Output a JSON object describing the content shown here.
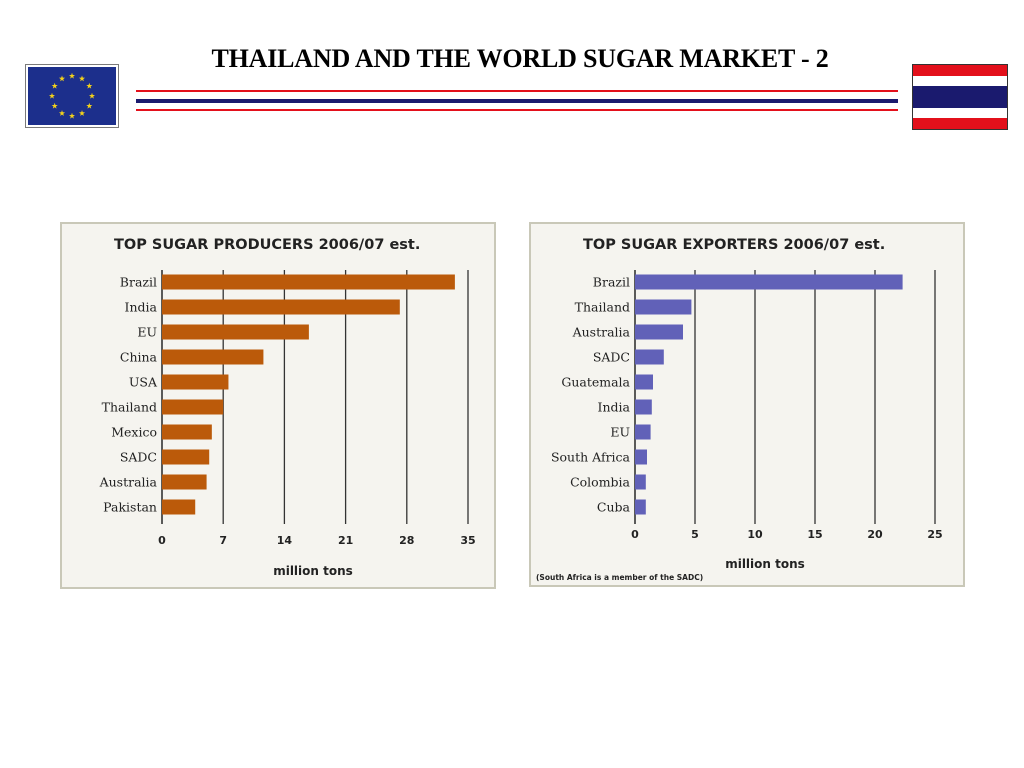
{
  "slide": {
    "title": "THAILAND AND THE WORLD SUGAR MARKET - 2",
    "colors": {
      "red": "#e3101b",
      "blue": "#1a1a6e",
      "eu_blue": "#1c2f8c",
      "eu_star": "#f2d11b"
    },
    "icons": {
      "left": "eu-flag-icon",
      "right": "thailand-flag-icon"
    }
  },
  "chart_data": [
    {
      "type": "bar",
      "orientation": "horizontal",
      "title": "TOP SUGAR PRODUCERS 2006/07 est.",
      "categories": [
        "Brazil",
        "India",
        "EU",
        "China",
        "USA",
        "Thailand",
        "Mexico",
        "SADC",
        "Australia",
        "Pakistan"
      ],
      "values": [
        33.5,
        27.2,
        16.8,
        11.6,
        7.6,
        7.0,
        5.7,
        5.4,
        5.1,
        3.8
      ],
      "xlabel": "million tons",
      "ylabel": "",
      "xlim": [
        0,
        35
      ],
      "xticks": [
        0,
        7,
        14,
        21,
        28,
        35
      ],
      "grid": true,
      "bar_color": "#bb5a0a",
      "footnote": ""
    },
    {
      "type": "bar",
      "orientation": "horizontal",
      "title": "TOP SUGAR EXPORTERS 2006/07 est.",
      "categories": [
        "Brazil",
        "Thailand",
        "Australia",
        "SADC",
        "Guatemala",
        "India",
        "EU",
        "South Africa",
        "Colombia",
        "Cuba"
      ],
      "values": [
        22.3,
        4.7,
        4.0,
        2.4,
        1.5,
        1.4,
        1.3,
        1.0,
        0.9,
        0.9
      ],
      "xlabel": "million tons",
      "ylabel": "",
      "xlim": [
        0,
        25
      ],
      "xticks": [
        0,
        5,
        10,
        15,
        20,
        25
      ],
      "grid": true,
      "bar_color": "#6161b8",
      "footnote": "(South Africa is a member of the SADC)"
    }
  ]
}
